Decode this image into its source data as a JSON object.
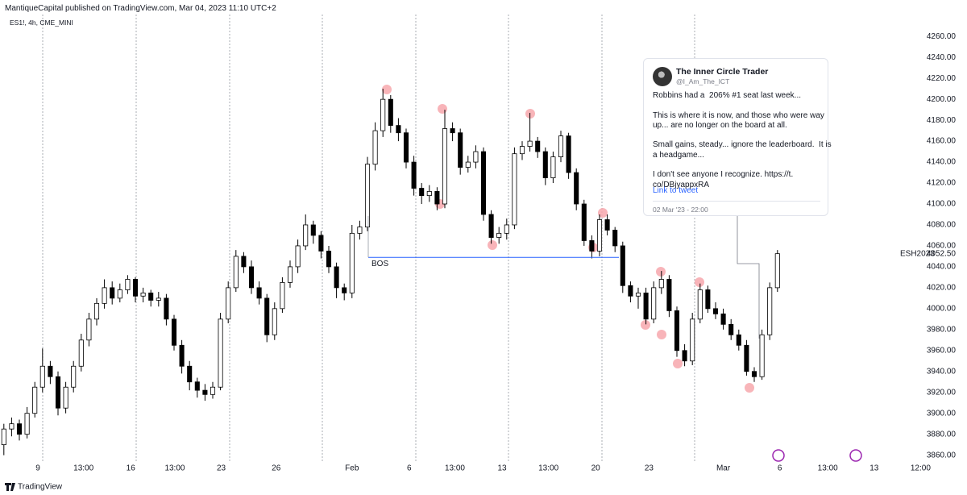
{
  "header": {
    "publisher": "MantiqueCapital published on TradingView.com, Mar 04, 2023 11:10 UTC+2",
    "symbol": "ES1!, 4h, CME_MINI"
  },
  "footer": {
    "brand": "TradingView"
  },
  "tweet": {
    "name": "The Inner Circle Trader",
    "handle": "@I_Am_The_ICT",
    "lines": [
      "Robbins had a  206% #1 seat last week...",
      "",
      "This is where it is now, and those who were way",
      "up... are no longer on the board at all.",
      "",
      "Small gains, steady... ignore the leaderboard.  It is",
      "a headgame...",
      "",
      "I don't see anyone I recognize. https://t.",
      "co/DBjyappxRA"
    ],
    "link": "Link to tweet",
    "date": "02 Mar '23 - 22:00"
  },
  "chart_data": {
    "type": "candlestick",
    "up_color": "#ffffff",
    "down_color": "#000000",
    "wick_color": "#000000",
    "grid": false,
    "ylim": [
      3852,
      4281
    ],
    "xlim": [
      -0.5,
      124.5
    ],
    "yticks": [
      {
        "value": 3860,
        "label": "3860.00"
      },
      {
        "value": 3880,
        "label": "3880.00"
      },
      {
        "value": 3900,
        "label": "3900.00"
      },
      {
        "value": 3920,
        "label": "3920.00"
      },
      {
        "value": 3940,
        "label": "3940.00"
      },
      {
        "value": 3960,
        "label": "3960.00"
      },
      {
        "value": 3980,
        "label": "3980.00"
      },
      {
        "value": 4000,
        "label": "4000.00"
      },
      {
        "value": 4020,
        "label": "4020.00"
      },
      {
        "value": 4040,
        "label": "4040.00"
      },
      {
        "value": 4060,
        "label": "4060.00"
      },
      {
        "value": 4080,
        "label": "4080.00"
      },
      {
        "value": 4100,
        "label": "4100.00"
      },
      {
        "value": 4120,
        "label": "4120.00"
      },
      {
        "value": 4140,
        "label": "4140.00"
      },
      {
        "value": 4160,
        "label": "4160.00"
      },
      {
        "value": 4180,
        "label": "4180.00"
      },
      {
        "value": 4200,
        "label": "4200.00"
      },
      {
        "value": 4220,
        "label": "4220.00"
      },
      {
        "value": 4240,
        "label": "4240.00"
      },
      {
        "value": 4260,
        "label": "4260.00"
      }
    ],
    "xticks": [
      {
        "value": 4.4,
        "label": "9"
      },
      {
        "value": 10.3,
        "label": "13:00"
      },
      {
        "value": 16.4,
        "label": "16"
      },
      {
        "value": 22.1,
        "label": "13:00"
      },
      {
        "value": 28.1,
        "label": "23"
      },
      {
        "value": 35.2,
        "label": "26"
      },
      {
        "value": 45,
        "label": "Feb"
      },
      {
        "value": 52.4,
        "label": "6"
      },
      {
        "value": 58.3,
        "label": "13:00"
      },
      {
        "value": 64.4,
        "label": "13"
      },
      {
        "value": 70.4,
        "label": "13:00"
      },
      {
        "value": 76.5,
        "label": "20"
      },
      {
        "value": 83.4,
        "label": "23"
      },
      {
        "value": 93,
        "label": "Mar"
      },
      {
        "value": 100.3,
        "label": "6"
      },
      {
        "value": 106.5,
        "label": "13:00"
      },
      {
        "value": 112.5,
        "label": "13"
      },
      {
        "value": 118.5,
        "label": "12:00"
      }
    ],
    "bos": {
      "label": "BOS",
      "level": 4049
    },
    "last_price": {
      "symbol": "ESH2023",
      "value": 4052.5,
      "label": "4052.50"
    },
    "ohlc": [
      [
        3870,
        3890,
        3860,
        3885
      ],
      [
        3885,
        3896,
        3878,
        3890
      ],
      [
        3890,
        3894,
        3874,
        3880
      ],
      [
        3880,
        3906,
        3876,
        3900
      ],
      [
        3900,
        3930,
        3896,
        3925
      ],
      [
        3925,
        3962,
        3920,
        3945
      ],
      [
        3945,
        3950,
        3928,
        3935
      ],
      [
        3935,
        3940,
        3898,
        3905
      ],
      [
        3905,
        3930,
        3900,
        3925
      ],
      [
        3925,
        3950,
        3920,
        3945
      ],
      [
        3945,
        3976,
        3940,
        3970
      ],
      [
        3970,
        3996,
        3964,
        3990
      ],
      [
        3990,
        4010,
        3984,
        4005
      ],
      [
        4005,
        4028,
        4000,
        4020
      ],
      [
        4020,
        4026,
        4004,
        4010
      ],
      [
        4010,
        4024,
        4006,
        4018
      ],
      [
        4018,
        4032,
        4014,
        4028
      ],
      [
        4028,
        4030,
        4006,
        4012
      ],
      [
        4012,
        4020,
        4006,
        4015
      ],
      [
        4015,
        4018,
        4002,
        4008
      ],
      [
        4008,
        4016,
        4002,
        4010
      ],
      [
        4010,
        4014,
        3984,
        3990
      ],
      [
        3990,
        3994,
        3960,
        3965
      ],
      [
        3965,
        3970,
        3938,
        3945
      ],
      [
        3945,
        3950,
        3922,
        3930
      ],
      [
        3930,
        3934,
        3915,
        3922
      ],
      [
        3922,
        3928,
        3912,
        3918
      ],
      [
        3918,
        3930,
        3914,
        3925
      ],
      [
        3925,
        3996,
        3922,
        3990
      ],
      [
        3990,
        4026,
        3986,
        4020
      ],
      [
        4020,
        4056,
        4016,
        4050
      ],
      [
        4050,
        4054,
        4034,
        4040
      ],
      [
        4040,
        4046,
        4014,
        4020
      ],
      [
        4020,
        4026,
        4004,
        4010
      ],
      [
        4010,
        4014,
        3968,
        3975
      ],
      [
        3975,
        4006,
        3970,
        4000
      ],
      [
        4000,
        4030,
        3996,
        4025
      ],
      [
        4025,
        4046,
        4020,
        4040
      ],
      [
        4040,
        4066,
        4034,
        4060
      ],
      [
        4060,
        4090,
        4056,
        4080
      ],
      [
        4080,
        4084,
        4062,
        4070
      ],
      [
        4070,
        4074,
        4048,
        4055
      ],
      [
        4055,
        4060,
        4034,
        4040
      ],
      [
        4040,
        4044,
        4010,
        4020
      ],
      [
        4020,
        4024,
        4008,
        4015
      ],
      [
        4015,
        4080,
        4010,
        4072
      ],
      [
        4072,
        4084,
        4066,
        4078
      ],
      [
        4078,
        4145,
        4074,
        4138
      ],
      [
        4138,
        4178,
        4132,
        4170
      ],
      [
        4170,
        4210,
        4164,
        4200
      ],
      [
        4200,
        4204,
        4168,
        4175
      ],
      [
        4175,
        4182,
        4160,
        4168
      ],
      [
        4168,
        4172,
        4134,
        4140
      ],
      [
        4140,
        4146,
        4108,
        4115
      ],
      [
        4115,
        4120,
        4100,
        4108
      ],
      [
        4108,
        4118,
        4102,
        4112
      ],
      [
        4112,
        4116,
        4094,
        4100
      ],
      [
        4100,
        4190,
        4096,
        4172
      ],
      [
        4172,
        4178,
        4160,
        4168
      ],
      [
        4168,
        4172,
        4128,
        4135
      ],
      [
        4135,
        4146,
        4130,
        4140
      ],
      [
        4140,
        4156,
        4134,
        4150
      ],
      [
        4150,
        4154,
        4084,
        4090
      ],
      [
        4090,
        4094,
        4062,
        4068
      ],
      [
        4068,
        4078,
        4062,
        4072
      ],
      [
        4072,
        4086,
        4066,
        4080
      ],
      [
        4080,
        4154,
        4076,
        4148
      ],
      [
        4148,
        4160,
        4142,
        4155
      ],
      [
        4155,
        4187,
        4150,
        4160
      ],
      [
        4160,
        4164,
        4144,
        4150
      ],
      [
        4150,
        4154,
        4118,
        4125
      ],
      [
        4125,
        4150,
        4120,
        4145
      ],
      [
        4145,
        4170,
        4140,
        4165
      ],
      [
        4165,
        4168,
        4124,
        4130
      ],
      [
        4130,
        4134,
        4094,
        4100
      ],
      [
        4100,
        4104,
        4060,
        4065
      ],
      [
        4065,
        4070,
        4048,
        4055
      ],
      [
        4055,
        4090,
        4050,
        4085
      ],
      [
        4085,
        4090,
        4070,
        4075
      ],
      [
        4075,
        4078,
        4054,
        4060
      ],
      [
        4060,
        4064,
        4015,
        4022
      ],
      [
        4022,
        4026,
        4006,
        4012
      ],
      [
        4012,
        4020,
        4000,
        4015
      ],
      [
        4015,
        4020,
        3985,
        3990
      ],
      [
        3990,
        4026,
        3986,
        4020
      ],
      [
        4020,
        4036,
        4014,
        4028
      ],
      [
        4028,
        4032,
        3992,
        3998
      ],
      [
        3998,
        4002,
        3954,
        3960
      ],
      [
        3960,
        3966,
        3945,
        3950
      ],
      [
        3950,
        3996,
        3946,
        3990
      ],
      [
        3990,
        4024,
        3986,
        4018
      ],
      [
        4018,
        4022,
        3996,
        4000
      ],
      [
        4000,
        4006,
        3990,
        3995
      ],
      [
        3995,
        4000,
        3980,
        3985
      ],
      [
        3985,
        3990,
        3970,
        3975
      ],
      [
        3975,
        3980,
        3960,
        3965
      ],
      [
        3965,
        3970,
        3936,
        3940
      ],
      [
        3940,
        3944,
        3930,
        3935
      ],
      [
        3935,
        3980,
        3932,
        3975
      ],
      [
        3975,
        4025,
        3970,
        4020
      ],
      [
        4020,
        4056,
        4016,
        4052.5
      ]
    ]
  }
}
